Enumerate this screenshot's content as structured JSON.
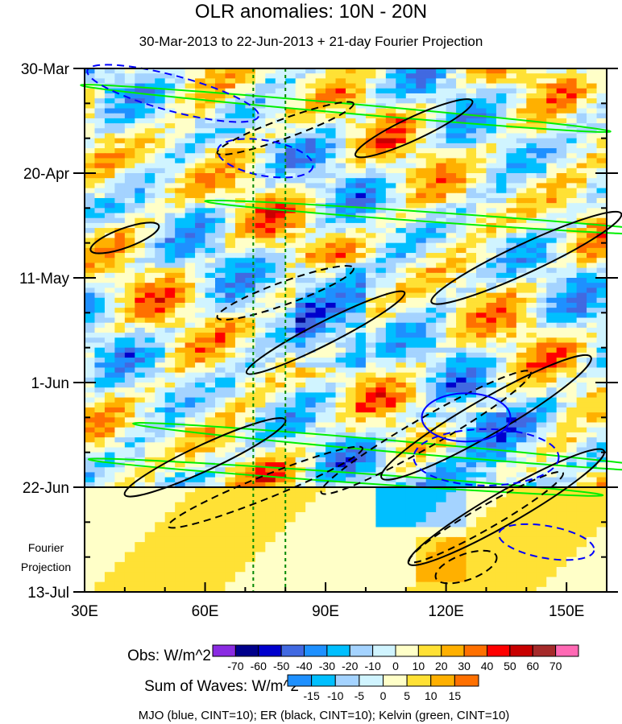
{
  "chart_data": {
    "type": "heatmap",
    "title": "OLR anomalies: 10N - 20N",
    "subtitle": "30-Mar-2013 to 22-Jun-2013 + 21-day Fourier Projection",
    "x_axis": {
      "ticks": [
        "30E",
        "60E",
        "90E",
        "120E",
        "150E"
      ],
      "tick_values": [
        30,
        60,
        90,
        120,
        150
      ],
      "range": [
        30,
        160
      ],
      "units": "degrees longitude"
    },
    "y_axis": {
      "ticks": [
        "30-Mar",
        "20-Apr",
        "11-May",
        "1-Jun",
        "22-Jun",
        "13-Jul"
      ],
      "tick_days": [
        0,
        21,
        42,
        63,
        84,
        105
      ],
      "range_days": [
        0,
        105
      ],
      "reversed": true
    },
    "projection_label": "Fourier Projection",
    "projection_start_day": 84,
    "reference_longitudes": [
      72,
      80
    ],
    "obs_colorbar": {
      "label": "Obs: W/m^2",
      "levels": [
        "-70",
        "-60",
        "-50",
        "-40",
        "-30",
        "-20",
        "-10",
        "0",
        "10",
        "20",
        "30",
        "40",
        "50",
        "60",
        "70"
      ],
      "colors": [
        "#8a2be2",
        "#00008b",
        "#0000cd",
        "#4169e1",
        "#1e90ff",
        "#00bfff",
        "#a4d3ff",
        "#d0f4ff",
        "#ffffc8",
        "#ffe135",
        "#ffb000",
        "#ff7000",
        "#ff0000",
        "#c80000",
        "#a52a2a",
        "#ff69b4"
      ]
    },
    "waves_colorbar": {
      "label": "Sum of Waves: W/m^2",
      "levels": [
        "-15",
        "-10",
        "-5",
        "0",
        "5",
        "10",
        "15"
      ],
      "colors": [
        "#1e90ff",
        "#00bfff",
        "#a4d3ff",
        "#d0f4ff",
        "#ffffc8",
        "#ffe135",
        "#ffb000",
        "#ff7000"
      ]
    },
    "legend_note": "MJO (blue, CINT=10); ER (black, CINT=10); Kelvin (green, CINT=10)",
    "series_colors": {
      "MJO": "#0000ff",
      "ER": "#000000",
      "Kelvin": "#00ee00"
    }
  }
}
